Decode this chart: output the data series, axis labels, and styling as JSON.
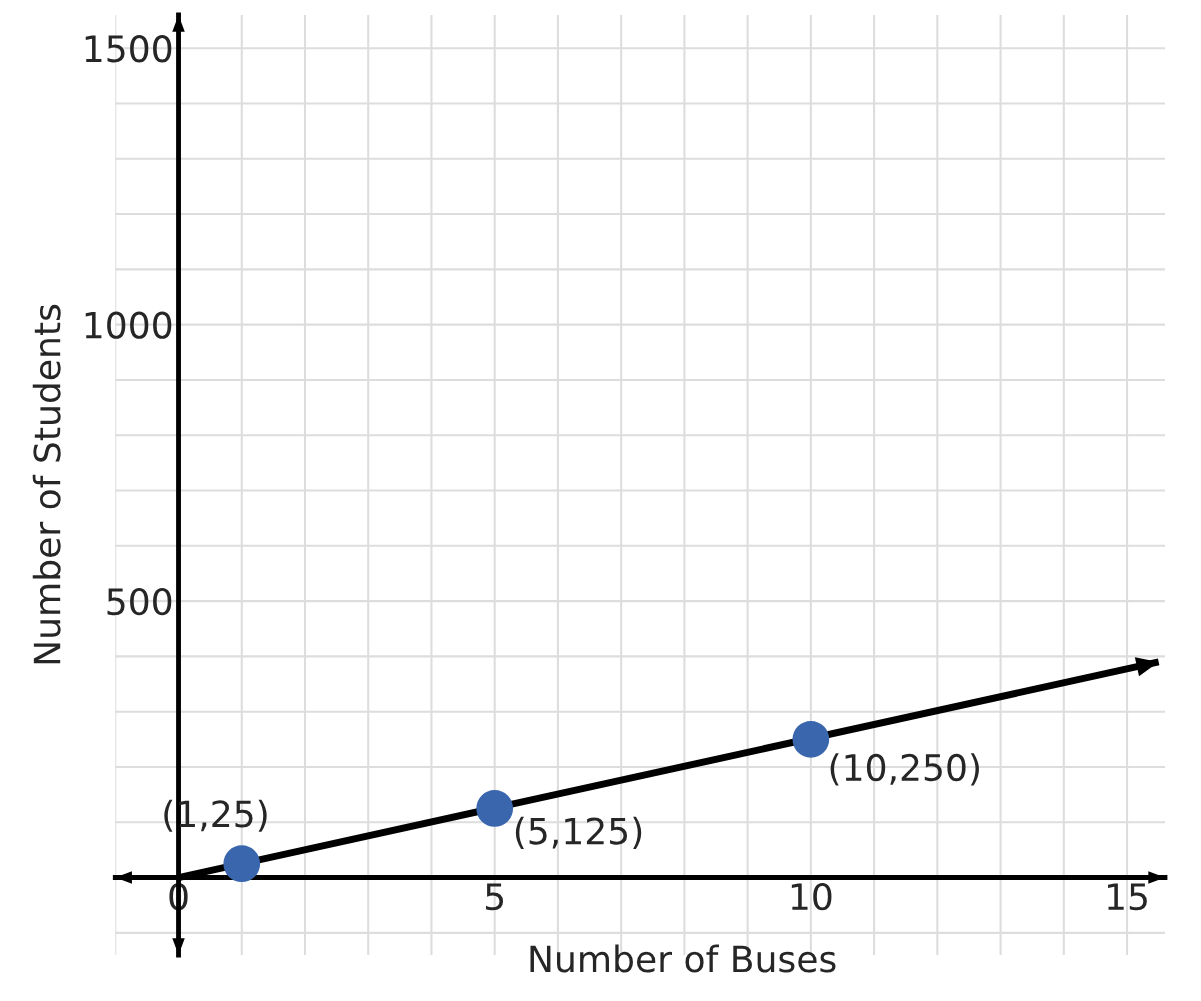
{
  "chart_data": {
    "type": "scatter",
    "xlabel": "Number of Buses",
    "ylabel": "Number of Students",
    "xlim": [
      -1,
      15.6
    ],
    "ylim": [
      -140,
      1560
    ],
    "xticks": [
      0,
      5,
      10,
      15
    ],
    "yticks": [
      500,
      1000,
      1500
    ],
    "grid": true,
    "marker": "circle",
    "series": [
      {
        "type": "line",
        "color": "#000000",
        "x": [
          0,
          15.5
        ],
        "values": [
          0,
          390
        ],
        "marker": "none",
        "line_style": "solid"
      },
      {
        "color": "#3a66ad",
        "x": [
          1,
          5,
          10
        ],
        "values": [
          25,
          125,
          250
        ]
      }
    ],
    "annotations": [
      {
        "text": "(1,25)",
        "x": 1,
        "y": 25
      },
      {
        "text": "(5,125)",
        "x": 5,
        "y": 125
      },
      {
        "text": "(10,250)",
        "x": 10,
        "y": 250
      }
    ]
  }
}
